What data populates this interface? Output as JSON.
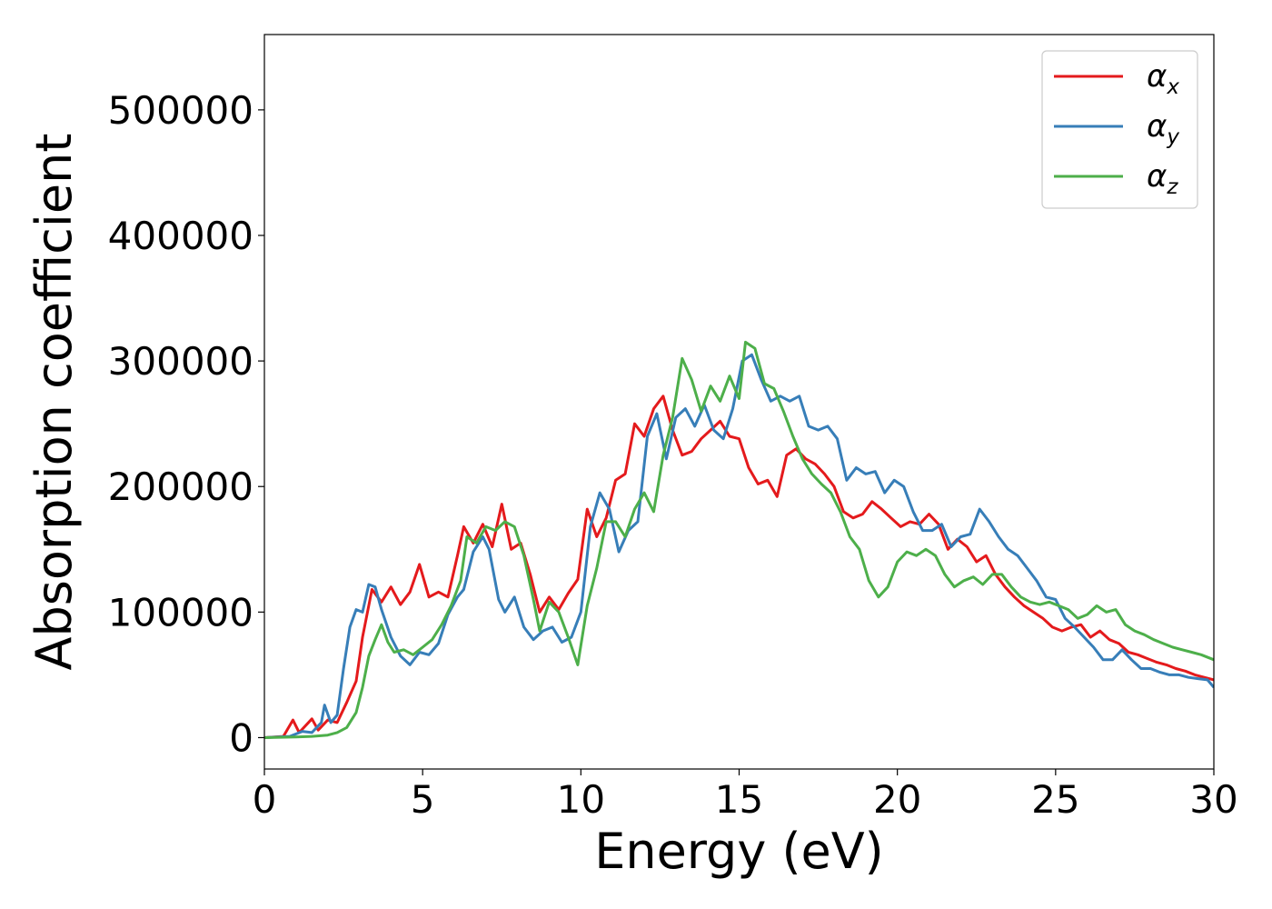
{
  "chart_data": {
    "type": "line",
    "xlabel": "Energy (eV)",
    "ylabel": "Absorption coefficient",
    "xlim": [
      0,
      30
    ],
    "ylim": [
      -25000,
      560000
    ],
    "x_ticks": [
      0,
      5,
      10,
      15,
      20,
      25,
      30
    ],
    "x_tick_labels": [
      "0",
      "5",
      "10",
      "15",
      "20",
      "25",
      "30"
    ],
    "y_ticks": [
      0,
      100000,
      200000,
      300000,
      400000,
      500000
    ],
    "y_tick_labels": [
      "0",
      "100000",
      "200000",
      "300000",
      "400000",
      "500000"
    ],
    "grid": false,
    "legend_position": "top-right",
    "series": [
      {
        "name": "α",
        "subscript": "x",
        "color": "#e41a1c",
        "points": [
          [
            0,
            0
          ],
          [
            0.6,
            1000
          ],
          [
            0.9,
            14000
          ],
          [
            1.1,
            4000
          ],
          [
            1.5,
            15000
          ],
          [
            1.7,
            6000
          ],
          [
            2.0,
            14000
          ],
          [
            2.3,
            12000
          ],
          [
            2.6,
            28000
          ],
          [
            2.9,
            45000
          ],
          [
            3.1,
            80000
          ],
          [
            3.4,
            118000
          ],
          [
            3.7,
            108000
          ],
          [
            4.0,
            120000
          ],
          [
            4.3,
            106000
          ],
          [
            4.6,
            116000
          ],
          [
            4.9,
            138000
          ],
          [
            5.2,
            112000
          ],
          [
            5.5,
            116000
          ],
          [
            5.8,
            112000
          ],
          [
            6.1,
            145000
          ],
          [
            6.3,
            168000
          ],
          [
            6.6,
            155000
          ],
          [
            6.9,
            170000
          ],
          [
            7.2,
            152000
          ],
          [
            7.5,
            186000
          ],
          [
            7.8,
            150000
          ],
          [
            8.1,
            155000
          ],
          [
            8.4,
            130000
          ],
          [
            8.7,
            100000
          ],
          [
            9.0,
            112000
          ],
          [
            9.3,
            102000
          ],
          [
            9.6,
            115000
          ],
          [
            9.9,
            126000
          ],
          [
            10.2,
            182000
          ],
          [
            10.5,
            160000
          ],
          [
            10.8,
            175000
          ],
          [
            11.1,
            205000
          ],
          [
            11.4,
            210000
          ],
          [
            11.7,
            250000
          ],
          [
            12.0,
            240000
          ],
          [
            12.3,
            262000
          ],
          [
            12.6,
            272000
          ],
          [
            12.9,
            245000
          ],
          [
            13.2,
            225000
          ],
          [
            13.5,
            228000
          ],
          [
            13.8,
            238000
          ],
          [
            14.1,
            245000
          ],
          [
            14.4,
            252000
          ],
          [
            14.7,
            240000
          ],
          [
            15.0,
            238000
          ],
          [
            15.3,
            215000
          ],
          [
            15.6,
            202000
          ],
          [
            15.9,
            205000
          ],
          [
            16.2,
            192000
          ],
          [
            16.5,
            225000
          ],
          [
            16.8,
            230000
          ],
          [
            17.1,
            222000
          ],
          [
            17.4,
            218000
          ],
          [
            17.7,
            210000
          ],
          [
            18.0,
            200000
          ],
          [
            18.3,
            180000
          ],
          [
            18.6,
            175000
          ],
          [
            18.9,
            178000
          ],
          [
            19.2,
            188000
          ],
          [
            19.5,
            182000
          ],
          [
            19.8,
            175000
          ],
          [
            20.1,
            168000
          ],
          [
            20.4,
            172000
          ],
          [
            20.7,
            170000
          ],
          [
            21.0,
            178000
          ],
          [
            21.3,
            170000
          ],
          [
            21.6,
            150000
          ],
          [
            21.9,
            158000
          ],
          [
            22.2,
            152000
          ],
          [
            22.5,
            140000
          ],
          [
            22.8,
            145000
          ],
          [
            23.1,
            130000
          ],
          [
            23.4,
            120000
          ],
          [
            23.7,
            112000
          ],
          [
            24.0,
            105000
          ],
          [
            24.3,
            100000
          ],
          [
            24.6,
            95000
          ],
          [
            24.9,
            88000
          ],
          [
            25.2,
            85000
          ],
          [
            25.5,
            88000
          ],
          [
            25.8,
            90000
          ],
          [
            26.1,
            80000
          ],
          [
            26.4,
            85000
          ],
          [
            26.7,
            78000
          ],
          [
            27.0,
            75000
          ],
          [
            27.3,
            68000
          ],
          [
            27.6,
            66000
          ],
          [
            27.9,
            63000
          ],
          [
            28.2,
            60000
          ],
          [
            28.5,
            58000
          ],
          [
            28.8,
            55000
          ],
          [
            29.1,
            53000
          ],
          [
            29.4,
            50000
          ],
          [
            29.7,
            48000
          ],
          [
            30.0,
            46000
          ]
        ]
      },
      {
        "name": "α",
        "subscript": "y",
        "color": "#377eb8",
        "points": [
          [
            0,
            0
          ],
          [
            0.8,
            1000
          ],
          [
            1.2,
            5000
          ],
          [
            1.5,
            4000
          ],
          [
            1.8,
            12000
          ],
          [
            1.9,
            26000
          ],
          [
            2.1,
            12000
          ],
          [
            2.3,
            18000
          ],
          [
            2.5,
            55000
          ],
          [
            2.7,
            88000
          ],
          [
            2.9,
            102000
          ],
          [
            3.1,
            100000
          ],
          [
            3.3,
            122000
          ],
          [
            3.5,
            120000
          ],
          [
            3.7,
            102000
          ],
          [
            4.0,
            80000
          ],
          [
            4.3,
            65000
          ],
          [
            4.6,
            58000
          ],
          [
            4.9,
            68000
          ],
          [
            5.2,
            66000
          ],
          [
            5.5,
            75000
          ],
          [
            5.8,
            98000
          ],
          [
            6.1,
            112000
          ],
          [
            6.3,
            118000
          ],
          [
            6.6,
            148000
          ],
          [
            6.9,
            160000
          ],
          [
            7.1,
            150000
          ],
          [
            7.4,
            110000
          ],
          [
            7.6,
            100000
          ],
          [
            7.9,
            112000
          ],
          [
            8.2,
            88000
          ],
          [
            8.5,
            78000
          ],
          [
            8.8,
            85000
          ],
          [
            9.1,
            88000
          ],
          [
            9.4,
            76000
          ],
          [
            9.7,
            80000
          ],
          [
            10.0,
            100000
          ],
          [
            10.3,
            168000
          ],
          [
            10.6,
            195000
          ],
          [
            10.9,
            182000
          ],
          [
            11.2,
            148000
          ],
          [
            11.5,
            165000
          ],
          [
            11.8,
            172000
          ],
          [
            12.1,
            240000
          ],
          [
            12.4,
            258000
          ],
          [
            12.7,
            222000
          ],
          [
            13.0,
            255000
          ],
          [
            13.3,
            262000
          ],
          [
            13.6,
            248000
          ],
          [
            13.9,
            265000
          ],
          [
            14.2,
            245000
          ],
          [
            14.5,
            238000
          ],
          [
            14.8,
            262000
          ],
          [
            15.1,
            300000
          ],
          [
            15.4,
            305000
          ],
          [
            15.7,
            285000
          ],
          [
            16.0,
            268000
          ],
          [
            16.3,
            272000
          ],
          [
            16.6,
            268000
          ],
          [
            16.9,
            272000
          ],
          [
            17.2,
            248000
          ],
          [
            17.5,
            245000
          ],
          [
            17.8,
            248000
          ],
          [
            18.1,
            238000
          ],
          [
            18.4,
            205000
          ],
          [
            18.7,
            215000
          ],
          [
            19.0,
            210000
          ],
          [
            19.3,
            212000
          ],
          [
            19.6,
            195000
          ],
          [
            19.9,
            205000
          ],
          [
            20.2,
            200000
          ],
          [
            20.5,
            180000
          ],
          [
            20.8,
            165000
          ],
          [
            21.1,
            165000
          ],
          [
            21.4,
            170000
          ],
          [
            21.7,
            152000
          ],
          [
            22.0,
            160000
          ],
          [
            22.3,
            162000
          ],
          [
            22.6,
            182000
          ],
          [
            22.9,
            172000
          ],
          [
            23.2,
            160000
          ],
          [
            23.5,
            150000
          ],
          [
            23.8,
            145000
          ],
          [
            24.1,
            135000
          ],
          [
            24.4,
            125000
          ],
          [
            24.7,
            112000
          ],
          [
            25.0,
            110000
          ],
          [
            25.3,
            95000
          ],
          [
            25.6,
            88000
          ],
          [
            25.9,
            80000
          ],
          [
            26.2,
            72000
          ],
          [
            26.5,
            62000
          ],
          [
            26.8,
            62000
          ],
          [
            27.1,
            70000
          ],
          [
            27.4,
            62000
          ],
          [
            27.7,
            55000
          ],
          [
            28.0,
            55000
          ],
          [
            28.3,
            52000
          ],
          [
            28.6,
            50000
          ],
          [
            28.9,
            50000
          ],
          [
            29.2,
            48000
          ],
          [
            29.5,
            47000
          ],
          [
            29.8,
            46000
          ],
          [
            30.0,
            40000
          ]
        ]
      },
      {
        "name": "α",
        "subscript": "z",
        "color": "#4daf4a",
        "points": [
          [
            0,
            0
          ],
          [
            1.0,
            500
          ],
          [
            1.5,
            1000
          ],
          [
            2.0,
            2000
          ],
          [
            2.3,
            4000
          ],
          [
            2.6,
            8000
          ],
          [
            2.9,
            20000
          ],
          [
            3.1,
            40000
          ],
          [
            3.3,
            65000
          ],
          [
            3.5,
            78000
          ],
          [
            3.7,
            90000
          ],
          [
            3.9,
            76000
          ],
          [
            4.1,
            68000
          ],
          [
            4.4,
            70000
          ],
          [
            4.7,
            66000
          ],
          [
            5.0,
            72000
          ],
          [
            5.3,
            78000
          ],
          [
            5.6,
            90000
          ],
          [
            5.9,
            105000
          ],
          [
            6.2,
            125000
          ],
          [
            6.4,
            160000
          ],
          [
            6.7,
            155000
          ],
          [
            7.0,
            168000
          ],
          [
            7.3,
            165000
          ],
          [
            7.6,
            172000
          ],
          [
            7.9,
            168000
          ],
          [
            8.2,
            145000
          ],
          [
            8.5,
            110000
          ],
          [
            8.7,
            85000
          ],
          [
            9.0,
            108000
          ],
          [
            9.3,
            100000
          ],
          [
            9.6,
            80000
          ],
          [
            9.9,
            58000
          ],
          [
            10.2,
            105000
          ],
          [
            10.5,
            135000
          ],
          [
            10.8,
            172000
          ],
          [
            11.1,
            172000
          ],
          [
            11.4,
            160000
          ],
          [
            11.7,
            182000
          ],
          [
            12.0,
            195000
          ],
          [
            12.3,
            180000
          ],
          [
            12.6,
            225000
          ],
          [
            12.9,
            255000
          ],
          [
            13.2,
            302000
          ],
          [
            13.5,
            285000
          ],
          [
            13.8,
            260000
          ],
          [
            14.1,
            280000
          ],
          [
            14.4,
            268000
          ],
          [
            14.7,
            288000
          ],
          [
            15.0,
            270000
          ],
          [
            15.2,
            315000
          ],
          [
            15.5,
            310000
          ],
          [
            15.8,
            282000
          ],
          [
            16.1,
            278000
          ],
          [
            16.4,
            260000
          ],
          [
            16.7,
            240000
          ],
          [
            17.0,
            222000
          ],
          [
            17.3,
            210000
          ],
          [
            17.6,
            202000
          ],
          [
            17.9,
            195000
          ],
          [
            18.2,
            180000
          ],
          [
            18.5,
            160000
          ],
          [
            18.8,
            150000
          ],
          [
            19.1,
            125000
          ],
          [
            19.4,
            112000
          ],
          [
            19.7,
            120000
          ],
          [
            20.0,
            140000
          ],
          [
            20.3,
            148000
          ],
          [
            20.6,
            145000
          ],
          [
            20.9,
            150000
          ],
          [
            21.2,
            145000
          ],
          [
            21.5,
            130000
          ],
          [
            21.8,
            120000
          ],
          [
            22.1,
            125000
          ],
          [
            22.4,
            128000
          ],
          [
            22.7,
            122000
          ],
          [
            23.0,
            130000
          ],
          [
            23.3,
            130000
          ],
          [
            23.6,
            120000
          ],
          [
            23.9,
            112000
          ],
          [
            24.2,
            108000
          ],
          [
            24.5,
            106000
          ],
          [
            24.8,
            108000
          ],
          [
            25.1,
            105000
          ],
          [
            25.4,
            102000
          ],
          [
            25.7,
            95000
          ],
          [
            26.0,
            98000
          ],
          [
            26.3,
            105000
          ],
          [
            26.6,
            100000
          ],
          [
            26.9,
            102000
          ],
          [
            27.2,
            90000
          ],
          [
            27.5,
            85000
          ],
          [
            27.8,
            82000
          ],
          [
            28.1,
            78000
          ],
          [
            28.4,
            75000
          ],
          [
            28.7,
            72000
          ],
          [
            29.0,
            70000
          ],
          [
            29.3,
            68000
          ],
          [
            29.6,
            66000
          ],
          [
            30.0,
            62000
          ]
        ]
      }
    ]
  }
}
